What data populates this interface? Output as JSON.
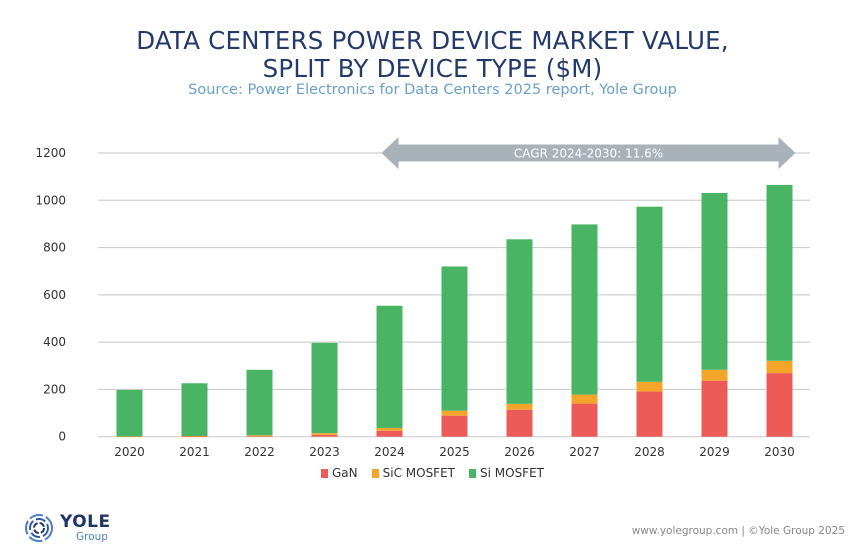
{
  "header": {
    "title_line1": "DATA CENTERS POWER DEVICE MARKET VALUE,",
    "title_line2": "SPLIT BY DEVICE TYPE ($M)",
    "subtitle": "Source: Power Electronics for Data Centers 2025 report, Yole Group"
  },
  "chart_data": {
    "type": "bar",
    "stacked": true,
    "title": "DATA CENTERS POWER DEVICE MARKET VALUE, SPLIT BY DEVICE TYPE ($M)",
    "xlabel": "",
    "ylabel": "",
    "ylim": [
      0,
      1200
    ],
    "yticks": [
      0,
      200,
      400,
      600,
      800,
      1000,
      1200
    ],
    "grid": true,
    "legend_position": "bottom",
    "categories": [
      "2020",
      "2021",
      "2022",
      "2023",
      "2024",
      "2025",
      "2026",
      "2027",
      "2028",
      "2029",
      "2030"
    ],
    "series": [
      {
        "name": "GaN",
        "color": "#ec5b57",
        "values": [
          0,
          1,
          2,
          8,
          25,
          89,
          114,
          140,
          191,
          237,
          269
        ]
      },
      {
        "name": "SiC MOSFET",
        "color": "#f5a52a",
        "values": [
          1,
          2,
          4,
          7,
          12,
          21,
          25,
          38,
          41,
          46,
          52
        ]
      },
      {
        "name": "Si MOSFET",
        "color": "#4ab465",
        "values": [
          197,
          223,
          277,
          382,
          517,
          610,
          696,
          720,
          741,
          748,
          744
        ]
      }
    ],
    "totals": [
      198,
      226,
      283,
      397,
      554,
      720,
      835,
      898,
      973,
      1031,
      1065
    ],
    "annotation": {
      "text": "CAGR 2024-2030:  11.6%",
      "from": "2024",
      "to": "2030",
      "color": "#aab2b9"
    }
  },
  "footer": {
    "logo_name": "YOLE",
    "logo_sub": "Group",
    "credit": "www.yolegroup.com | ©Yole Group 2025"
  }
}
